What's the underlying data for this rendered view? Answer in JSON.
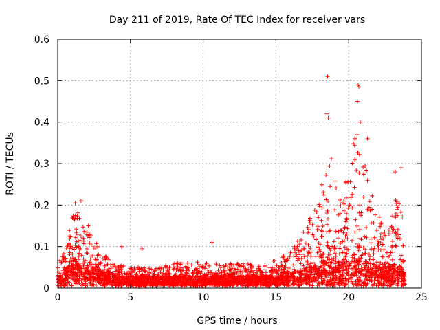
{
  "chart_data": {
    "type": "scatter",
    "title": "Day 211 of 2019, Rate Of TEC Index for receiver vars",
    "xlabel": "GPS time / hours",
    "ylabel": "ROTI / TECUs",
    "xlim": [
      0,
      25
    ],
    "ylim": [
      0,
      0.6
    ],
    "xticks": [
      0,
      5,
      10,
      15,
      20,
      25
    ],
    "yticks": [
      0,
      0.1,
      0.2,
      0.3,
      0.4,
      0.5,
      0.6
    ],
    "xtick_labels": [
      "0",
      "5",
      "10",
      "15",
      "20",
      "25"
    ],
    "ytick_labels": [
      "0",
      "0.1",
      "0.2",
      "0.3",
      "0.4",
      "0.5",
      "0.6"
    ],
    "grid": true,
    "marker": "+",
    "series": [
      {
        "name": "ROTI",
        "color": "#ff0000",
        "envelope": [
          {
            "x": 0.0,
            "base": 0.02,
            "peak": 0.07
          },
          {
            "x": 0.5,
            "base": 0.03,
            "peak": 0.09
          },
          {
            "x": 1.0,
            "base": 0.05,
            "peak": 0.17
          },
          {
            "x": 1.3,
            "base": 0.06,
            "peak": 0.2
          },
          {
            "x": 1.6,
            "base": 0.05,
            "peak": 0.16
          },
          {
            "x": 2.0,
            "base": 0.04,
            "peak": 0.14
          },
          {
            "x": 2.5,
            "base": 0.04,
            "peak": 0.12
          },
          {
            "x": 3.0,
            "base": 0.03,
            "peak": 0.09
          },
          {
            "x": 3.5,
            "base": 0.03,
            "peak": 0.07
          },
          {
            "x": 4.0,
            "base": 0.02,
            "peak": 0.06
          },
          {
            "x": 5.0,
            "base": 0.02,
            "peak": 0.05
          },
          {
            "x": 6.0,
            "base": 0.02,
            "peak": 0.05
          },
          {
            "x": 7.0,
            "base": 0.02,
            "peak": 0.05
          },
          {
            "x": 8.0,
            "base": 0.02,
            "peak": 0.06
          },
          {
            "x": 9.0,
            "base": 0.02,
            "peak": 0.07
          },
          {
            "x": 10.0,
            "base": 0.02,
            "peak": 0.06
          },
          {
            "x": 11.0,
            "base": 0.02,
            "peak": 0.06
          },
          {
            "x": 12.0,
            "base": 0.02,
            "peak": 0.06
          },
          {
            "x": 13.0,
            "base": 0.02,
            "peak": 0.06
          },
          {
            "x": 14.0,
            "base": 0.02,
            "peak": 0.06
          },
          {
            "x": 15.0,
            "base": 0.02,
            "peak": 0.07
          },
          {
            "x": 15.5,
            "base": 0.03,
            "peak": 0.08
          },
          {
            "x": 16.0,
            "base": 0.03,
            "peak": 0.09
          },
          {
            "x": 16.5,
            "base": 0.03,
            "peak": 0.12
          },
          {
            "x": 17.0,
            "base": 0.04,
            "peak": 0.15
          },
          {
            "x": 17.5,
            "base": 0.04,
            "peak": 0.18
          },
          {
            "x": 18.0,
            "base": 0.05,
            "peak": 0.25
          },
          {
            "x": 18.5,
            "base": 0.06,
            "peak": 0.4
          },
          {
            "x": 19.0,
            "base": 0.05,
            "peak": 0.28
          },
          {
            "x": 19.5,
            "base": 0.05,
            "peak": 0.23
          },
          {
            "x": 20.0,
            "base": 0.05,
            "peak": 0.3
          },
          {
            "x": 20.5,
            "base": 0.06,
            "peak": 0.38
          },
          {
            "x": 21.0,
            "base": 0.05,
            "peak": 0.33
          },
          {
            "x": 21.5,
            "base": 0.05,
            "peak": 0.25
          },
          {
            "x": 22.0,
            "base": 0.04,
            "peak": 0.18
          },
          {
            "x": 22.5,
            "base": 0.04,
            "peak": 0.14
          },
          {
            "x": 23.0,
            "base": 0.04,
            "peak": 0.18
          },
          {
            "x": 23.5,
            "base": 0.04,
            "peak": 0.25
          },
          {
            "x": 23.9,
            "base": 0.03,
            "peak": 0.1
          }
        ],
        "outliers": [
          {
            "x": 18.55,
            "y": 0.51
          },
          {
            "x": 20.65,
            "y": 0.49
          },
          {
            "x": 20.7,
            "y": 0.485
          },
          {
            "x": 20.6,
            "y": 0.45
          },
          {
            "x": 18.5,
            "y": 0.42
          },
          {
            "x": 18.6,
            "y": 0.41
          },
          {
            "x": 20.8,
            "y": 0.4
          },
          {
            "x": 21.3,
            "y": 0.36
          },
          {
            "x": 1.6,
            "y": 0.21
          },
          {
            "x": 1.2,
            "y": 0.205
          },
          {
            "x": 2.1,
            "y": 0.15
          },
          {
            "x": 4.4,
            "y": 0.1
          },
          {
            "x": 5.8,
            "y": 0.095
          },
          {
            "x": 10.6,
            "y": 0.11
          },
          {
            "x": 23.2,
            "y": 0.28
          },
          {
            "x": 23.6,
            "y": 0.29
          }
        ]
      }
    ]
  }
}
